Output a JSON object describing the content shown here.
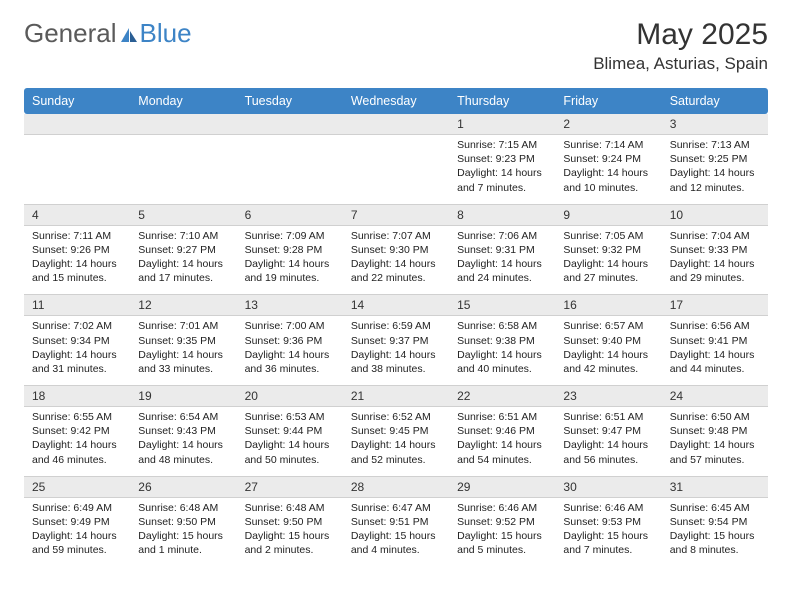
{
  "brand": {
    "part1": "General",
    "part2": "Blue"
  },
  "header": {
    "title": "May 2025",
    "location": "Blimea, Asturias, Spain"
  },
  "colors": {
    "header_bg": "#3d84c6",
    "header_text": "#ffffff",
    "daynum_bg": "#ebebeb",
    "border": "#d0d0d0",
    "body_text": "#222222",
    "logo_gray": "#5a5a5a",
    "logo_blue": "#3d84c6"
  },
  "weekdays": [
    "Sunday",
    "Monday",
    "Tuesday",
    "Wednesday",
    "Thursday",
    "Friday",
    "Saturday"
  ],
  "weeks": [
    {
      "nums": [
        "",
        "",
        "",
        "",
        "1",
        "2",
        "3"
      ],
      "cells": [
        {
          "blank": true
        },
        {
          "blank": true
        },
        {
          "blank": true
        },
        {
          "blank": true
        },
        {
          "sunrise": "7:15 AM",
          "sunset": "9:23 PM",
          "dlh": "14",
          "dlm": "7"
        },
        {
          "sunrise": "7:14 AM",
          "sunset": "9:24 PM",
          "dlh": "14",
          "dlm": "10"
        },
        {
          "sunrise": "7:13 AM",
          "sunset": "9:25 PM",
          "dlh": "14",
          "dlm": "12"
        }
      ]
    },
    {
      "nums": [
        "4",
        "5",
        "6",
        "7",
        "8",
        "9",
        "10"
      ],
      "cells": [
        {
          "sunrise": "7:11 AM",
          "sunset": "9:26 PM",
          "dlh": "14",
          "dlm": "15"
        },
        {
          "sunrise": "7:10 AM",
          "sunset": "9:27 PM",
          "dlh": "14",
          "dlm": "17"
        },
        {
          "sunrise": "7:09 AM",
          "sunset": "9:28 PM",
          "dlh": "14",
          "dlm": "19"
        },
        {
          "sunrise": "7:07 AM",
          "sunset": "9:30 PM",
          "dlh": "14",
          "dlm": "22"
        },
        {
          "sunrise": "7:06 AM",
          "sunset": "9:31 PM",
          "dlh": "14",
          "dlm": "24"
        },
        {
          "sunrise": "7:05 AM",
          "sunset": "9:32 PM",
          "dlh": "14",
          "dlm": "27"
        },
        {
          "sunrise": "7:04 AM",
          "sunset": "9:33 PM",
          "dlh": "14",
          "dlm": "29"
        }
      ]
    },
    {
      "nums": [
        "11",
        "12",
        "13",
        "14",
        "15",
        "16",
        "17"
      ],
      "cells": [
        {
          "sunrise": "7:02 AM",
          "sunset": "9:34 PM",
          "dlh": "14",
          "dlm": "31"
        },
        {
          "sunrise": "7:01 AM",
          "sunset": "9:35 PM",
          "dlh": "14",
          "dlm": "33"
        },
        {
          "sunrise": "7:00 AM",
          "sunset": "9:36 PM",
          "dlh": "14",
          "dlm": "36"
        },
        {
          "sunrise": "6:59 AM",
          "sunset": "9:37 PM",
          "dlh": "14",
          "dlm": "38"
        },
        {
          "sunrise": "6:58 AM",
          "sunset": "9:38 PM",
          "dlh": "14",
          "dlm": "40"
        },
        {
          "sunrise": "6:57 AM",
          "sunset": "9:40 PM",
          "dlh": "14",
          "dlm": "42"
        },
        {
          "sunrise": "6:56 AM",
          "sunset": "9:41 PM",
          "dlh": "14",
          "dlm": "44"
        }
      ]
    },
    {
      "nums": [
        "18",
        "19",
        "20",
        "21",
        "22",
        "23",
        "24"
      ],
      "cells": [
        {
          "sunrise": "6:55 AM",
          "sunset": "9:42 PM",
          "dlh": "14",
          "dlm": "46"
        },
        {
          "sunrise": "6:54 AM",
          "sunset": "9:43 PM",
          "dlh": "14",
          "dlm": "48"
        },
        {
          "sunrise": "6:53 AM",
          "sunset": "9:44 PM",
          "dlh": "14",
          "dlm": "50"
        },
        {
          "sunrise": "6:52 AM",
          "sunset": "9:45 PM",
          "dlh": "14",
          "dlm": "52"
        },
        {
          "sunrise": "6:51 AM",
          "sunset": "9:46 PM",
          "dlh": "14",
          "dlm": "54"
        },
        {
          "sunrise": "6:51 AM",
          "sunset": "9:47 PM",
          "dlh": "14",
          "dlm": "56"
        },
        {
          "sunrise": "6:50 AM",
          "sunset": "9:48 PM",
          "dlh": "14",
          "dlm": "57"
        }
      ]
    },
    {
      "nums": [
        "25",
        "26",
        "27",
        "28",
        "29",
        "30",
        "31"
      ],
      "cells": [
        {
          "sunrise": "6:49 AM",
          "sunset": "9:49 PM",
          "dlh": "14",
          "dlm": "59"
        },
        {
          "sunrise": "6:48 AM",
          "sunset": "9:50 PM",
          "dlh": "15",
          "dlm": "1",
          "singular": true
        },
        {
          "sunrise": "6:48 AM",
          "sunset": "9:50 PM",
          "dlh": "15",
          "dlm": "2"
        },
        {
          "sunrise": "6:47 AM",
          "sunset": "9:51 PM",
          "dlh": "15",
          "dlm": "4"
        },
        {
          "sunrise": "6:46 AM",
          "sunset": "9:52 PM",
          "dlh": "15",
          "dlm": "5"
        },
        {
          "sunrise": "6:46 AM",
          "sunset": "9:53 PM",
          "dlh": "15",
          "dlm": "7"
        },
        {
          "sunrise": "6:45 AM",
          "sunset": "9:54 PM",
          "dlh": "15",
          "dlm": "8"
        }
      ]
    }
  ]
}
